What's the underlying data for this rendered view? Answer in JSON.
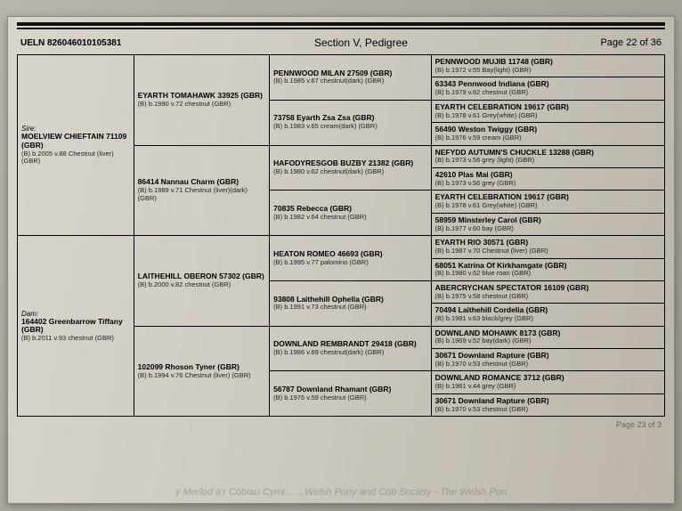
{
  "header": {
    "ueln": "UELN 826046010105381",
    "section": "Section V, Pedigree",
    "page": "Page 22 of 36"
  },
  "sire": {
    "label": "Sire:",
    "name": "MOELVIEW CHIEFTAIN 71109 (GBR)",
    "meta": "(B) b.2005 v.88 Chestnut (liver) (GBR)"
  },
  "dam": {
    "label": "Dam:",
    "name": "164402 Greenbarrow Tiffany (GBR)",
    "meta": "(B) b.2011 v.93 chestnut (GBR)"
  },
  "gp": [
    {
      "name": "EYARTH TOMAHAWK 33925 (GBR)",
      "meta": "(B) b.1990 v.72 chestnut (GBR)"
    },
    {
      "name": "86414 Nannau Charm (GBR)",
      "meta": "(B) b.1989 v.71 Chestnut (liver)(dark) (GBR)"
    },
    {
      "name": "LAITHEHILL OBERON 57302 (GBR)",
      "meta": "(B) b.2000 v.82 chestnut (GBR)"
    },
    {
      "name": "102099 Rhoson Tyner (GBR)",
      "meta": "(B) b.1994 v.76 Chestnut (liver) (GBR)"
    }
  ],
  "ggp": [
    {
      "name": "PENNWOOD MILAN 27509 (GBR)",
      "meta": "(B) b.1985 v.67 chestnut(dark) (GBR)"
    },
    {
      "name": "73758 Eyarth Zsa Zsa (GBR)",
      "meta": "(B) b.1983 v.65 cream(dark) (GBR)"
    },
    {
      "name": "HAFODYRESGOB BUZBY 21382 (GBR)",
      "meta": "(B) b.1980 v.62 chestnut(dark) (GBR)"
    },
    {
      "name": "70835 Rebecca (GBR)",
      "meta": "(B) b.1982 v.64 chestnut (GBR)"
    },
    {
      "name": "HEATON ROMEO 46693 (GBR)",
      "meta": "(B) b.1995 v.77 palomino (GBR)"
    },
    {
      "name": "93808 Laithehill Ophelia (GBR)",
      "meta": "(B) b.1991 v.73 chestnut (GBR)"
    },
    {
      "name": "DOWNLAND REMBRANDT 29418 (GBR)",
      "meta": "(B) b.1986 v.69 chestnut(dark) (GBR)"
    },
    {
      "name": "56787 Downland Rhamant (GBR)",
      "meta": "(B) b.1976 v.59 chestnut (GBR)"
    }
  ],
  "gggp": [
    {
      "name": "PENNWOOD MUJIB 11748 (GBR)",
      "meta": "(B) b.1972 v.55 Bay(light) (GBR)"
    },
    {
      "name": "63343 Pennwood Indiana (GBR)",
      "meta": "(B) b.1979 v.62 chestnut (GBR)"
    },
    {
      "name": "EYARTH CELEBRATION 19617 (GBR)",
      "meta": "(B) b.1978 v.61 Grey(white) (GBR)"
    },
    {
      "name": "56490 Weston Twiggy (GBR)",
      "meta": "(B) b.1976 v.59 cream (GBR)"
    },
    {
      "name": "NEFYDD AUTUMN'S CHUCKLE 13288 (GBR)",
      "meta": "(B) b.1973 v.56 grey (light) (GBR)"
    },
    {
      "name": "42610 Plas Mai (GBR)",
      "meta": "(B) b.1973 v.56 grey (GBR)"
    },
    {
      "name": "EYARTH CELEBRATION 19617 (GBR)",
      "meta": "(B) b.1978 v.61 Grey(white) (GBR)"
    },
    {
      "name": "58959 Minsterley Carol (GBR)",
      "meta": "(B) b.1977 v.60 bay (GBR)"
    },
    {
      "name": "EYARTH RIO 30571 (GBR)",
      "meta": "(B) b.1987 v.70 Chestnut (liver) (GBR)"
    },
    {
      "name": "68051 Katrina Of Kirkhamgate (GBR)",
      "meta": "(B) b.1980 v.62 blue roan (GBR)"
    },
    {
      "name": "ABERCRYCHAN SPECTATOR 16109 (GBR)",
      "meta": "(B) b.1975 v.58 chestnut (GBR)"
    },
    {
      "name": "70494 Laithehill Cordelia (GBR)",
      "meta": "(B) b.1981 v.63 black/grey (GBR)"
    },
    {
      "name": "DOWNLAND MOHAWK 8173 (GBR)",
      "meta": "(B) b.1969 v.52 bay(dark) (GBR)"
    },
    {
      "name": "30671 Downland Rapture (GBR)",
      "meta": "(B) b.1970 v.53 chestnut (GBR)"
    },
    {
      "name": "DOWNLAND ROMANCE 3712 (GBR)",
      "meta": "(B) b.1961 v.44 grey (GBR)"
    },
    {
      "name": "30671 Downland Rapture (GBR)",
      "meta": "(B) b.1970 v.53 chestnut (GBR)"
    }
  ],
  "footer": {
    "watermark": "y Merlod a'r Cobiau Cymr...   ...Welsh Pony and Cob Society - The Welsh Pon",
    "nextpage": "Page 23 of 3"
  }
}
